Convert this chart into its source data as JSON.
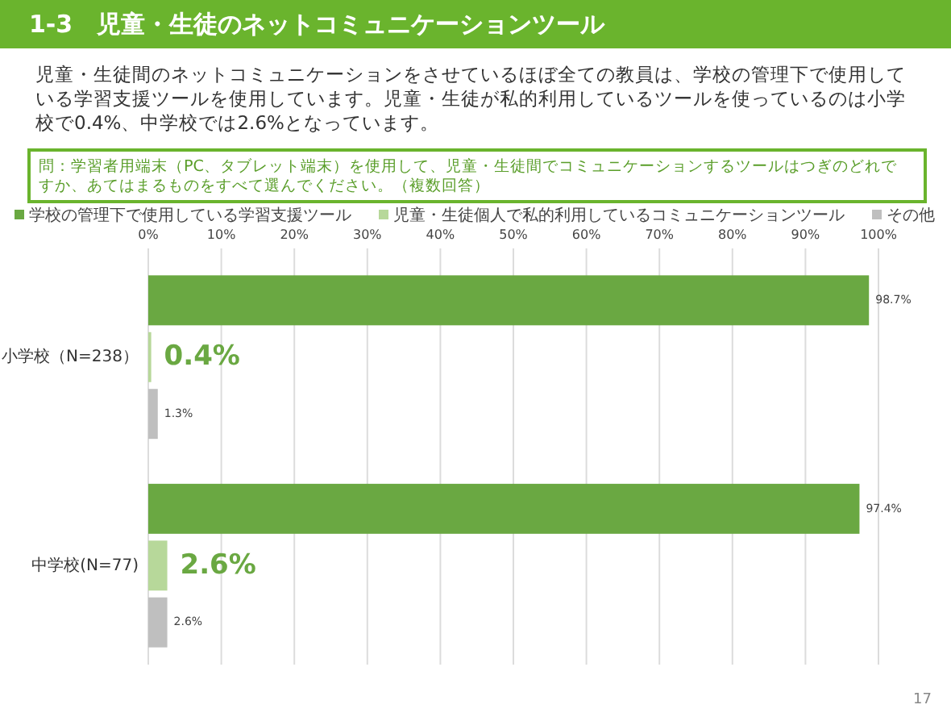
{
  "chart_data": {
    "type": "bar",
    "orientation": "horizontal",
    "title": "1-3　児童・生徒のネットコミュニケーションツール",
    "subtitle": "児童・生徒間のネットコミュニケーションをさせているほぼ全ての教員は、学校の管理下で使用している学習支援ツールを使用しています。児童・生徒が私的利用しているツールを使っているのは小学校で0.4%、中学校では2.6%となっています。",
    "annotations": [
      "問：学習者用端末（PC、タブレット端末）を使用して、児童・生徒間でコミュニケーションするツールはつぎのどれですか、あてはまるものをすべて選んでください。（複数回答）",
      "17"
    ],
    "categories": [
      "小学校（N=238）",
      "中学校(N=77)"
    ],
    "series": [
      {
        "name": "学校の管理下で使用している学習支援ツール",
        "color": "#6aa842",
        "values": [
          98.7,
          97.4
        ],
        "value_labels": [
          "98.7%",
          "97.4%"
        ]
      },
      {
        "name": "児童・生徒個人で私的利用しているコミュニケーションツール",
        "color": "#b7d89a",
        "values": [
          0.4,
          2.6
        ],
        "value_labels": [
          "0.4%",
          "2.6%"
        ]
      },
      {
        "name": "その他",
        "color": "#bfbfbf",
        "values": [
          1.3,
          2.6
        ],
        "value_labels": [
          "1.3%",
          "2.6%"
        ]
      }
    ],
    "xlim": [
      0,
      100
    ],
    "xticks": [
      {
        "value": 0,
        "label": "0%"
      },
      {
        "value": 10,
        "label": "10%"
      },
      {
        "value": 20,
        "label": "20%"
      },
      {
        "value": 30,
        "label": "30%"
      },
      {
        "value": 40,
        "label": "40%"
      },
      {
        "value": 50,
        "label": "50%"
      },
      {
        "value": 60,
        "label": "60%"
      },
      {
        "value": 70,
        "label": "70%"
      },
      {
        "value": 80,
        "label": "80%"
      },
      {
        "value": 90,
        "label": "90%"
      },
      {
        "value": 100,
        "label": "100%"
      }
    ],
    "grid": "x",
    "legend": "top"
  }
}
